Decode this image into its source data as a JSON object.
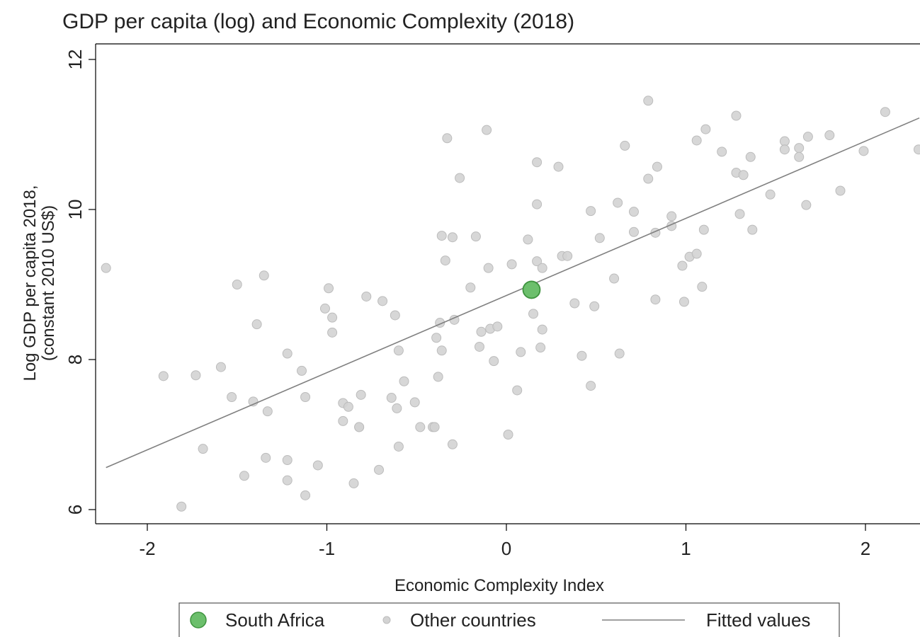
{
  "chart_data": {
    "type": "scatter",
    "title": "GDP per capita (log) and Economic Complexity (2018)",
    "xlabel": "Economic Complexity Index",
    "ylabel_lines": [
      "Log GDP per capita 2018,",
      "(constant 2010 US$)"
    ],
    "xlim": [
      -2.3,
      2.3
    ],
    "ylim": [
      5.9,
      12.2
    ],
    "xticks": [
      -2,
      -1,
      0,
      1,
      2
    ],
    "yticks": [
      6,
      8,
      10,
      12
    ],
    "grid": false,
    "legend_position": "bottom",
    "colors": {
      "highlight_fill": "#6cbf6c",
      "highlight_stroke": "#3f943f",
      "other_fill": "#d3d3d3",
      "other_stroke": "#bcbcbc",
      "fit": "#808080",
      "axis": "#000000"
    },
    "series": [
      {
        "name": "South Africa",
        "kind": "highlight",
        "points": [
          [
            0.14,
            8.93
          ]
        ]
      },
      {
        "name": "Other countries",
        "kind": "scatter",
        "points": [
          [
            -2.23,
            9.22
          ],
          [
            -1.91,
            7.78
          ],
          [
            -1.81,
            6.04
          ],
          [
            -1.73,
            7.79
          ],
          [
            -1.69,
            6.81
          ],
          [
            -1.59,
            7.9
          ],
          [
            -1.53,
            7.5
          ],
          [
            -1.5,
            9.0
          ],
          [
            -1.46,
            6.45
          ],
          [
            -1.41,
            7.44
          ],
          [
            -1.39,
            8.47
          ],
          [
            -1.35,
            9.12
          ],
          [
            -1.34,
            6.69
          ],
          [
            -1.33,
            7.31
          ],
          [
            -1.22,
            8.08
          ],
          [
            -1.22,
            6.66
          ],
          [
            -1.22,
            6.39
          ],
          [
            -1.14,
            7.85
          ],
          [
            -1.12,
            6.19
          ],
          [
            -1.12,
            7.5
          ],
          [
            -1.05,
            6.59
          ],
          [
            -1.01,
            8.68
          ],
          [
            -0.99,
            8.95
          ],
          [
            -0.97,
            8.36
          ],
          [
            -0.97,
            8.56
          ],
          [
            -0.91,
            7.18
          ],
          [
            -0.91,
            7.42
          ],
          [
            -0.88,
            7.37
          ],
          [
            -0.85,
            6.35
          ],
          [
            -0.82,
            7.1
          ],
          [
            -0.82,
            7.1
          ],
          [
            -0.81,
            7.53
          ],
          [
            -0.78,
            8.84
          ],
          [
            -0.71,
            6.53
          ],
          [
            -0.69,
            8.78
          ],
          [
            -0.64,
            7.49
          ],
          [
            -0.62,
            8.59
          ],
          [
            -0.61,
            7.35
          ],
          [
            -0.6,
            8.12
          ],
          [
            -0.6,
            6.84
          ],
          [
            -0.57,
            7.71
          ],
          [
            -0.51,
            7.43
          ],
          [
            -0.48,
            7.1
          ],
          [
            -0.41,
            7.1
          ],
          [
            -0.4,
            7.1
          ],
          [
            -0.39,
            8.29
          ],
          [
            -0.38,
            7.77
          ],
          [
            -0.37,
            8.49
          ],
          [
            -0.36,
            8.12
          ],
          [
            -0.36,
            9.65
          ],
          [
            -0.34,
            9.32
          ],
          [
            -0.33,
            10.95
          ],
          [
            -0.3,
            9.63
          ],
          [
            -0.3,
            6.87
          ],
          [
            -0.29,
            8.53
          ],
          [
            -0.26,
            10.42
          ],
          [
            -0.2,
            8.96
          ],
          [
            -0.17,
            9.64
          ],
          [
            -0.15,
            8.17
          ],
          [
            -0.14,
            8.37
          ],
          [
            -0.11,
            11.06
          ],
          [
            -0.1,
            9.22
          ],
          [
            -0.09,
            8.41
          ],
          [
            -0.07,
            7.98
          ],
          [
            -0.05,
            8.44
          ],
          [
            0.01,
            7.0
          ],
          [
            0.03,
            9.27
          ],
          [
            0.06,
            7.59
          ],
          [
            0.08,
            8.1
          ],
          [
            0.12,
            9.6
          ],
          [
            0.15,
            8.61
          ],
          [
            0.17,
            10.63
          ],
          [
            0.17,
            10.07
          ],
          [
            0.17,
            9.31
          ],
          [
            0.19,
            8.16
          ],
          [
            0.2,
            8.4
          ],
          [
            0.2,
            9.22
          ],
          [
            0.29,
            10.57
          ],
          [
            0.31,
            9.38
          ],
          [
            0.34,
            9.38
          ],
          [
            0.38,
            8.75
          ],
          [
            0.42,
            8.05
          ],
          [
            0.47,
            7.65
          ],
          [
            0.47,
            9.98
          ],
          [
            0.49,
            8.71
          ],
          [
            0.52,
            9.62
          ],
          [
            0.6,
            9.08
          ],
          [
            0.62,
            10.09
          ],
          [
            0.63,
            8.08
          ],
          [
            0.66,
            10.85
          ],
          [
            0.71,
            9.97
          ],
          [
            0.71,
            9.7
          ],
          [
            0.79,
            10.41
          ],
          [
            0.79,
            11.45
          ],
          [
            0.83,
            8.8
          ],
          [
            0.83,
            9.69
          ],
          [
            0.84,
            10.57
          ],
          [
            0.92,
            9.78
          ],
          [
            0.92,
            9.91
          ],
          [
            0.98,
            9.25
          ],
          [
            0.99,
            8.77
          ],
          [
            1.02,
            9.37
          ],
          [
            1.06,
            10.92
          ],
          [
            1.06,
            9.41
          ],
          [
            1.09,
            8.97
          ],
          [
            1.1,
            9.73
          ],
          [
            1.11,
            11.07
          ],
          [
            1.2,
            10.77
          ],
          [
            1.28,
            10.49
          ],
          [
            1.28,
            11.25
          ],
          [
            1.3,
            9.94
          ],
          [
            1.32,
            10.46
          ],
          [
            1.36,
            10.7
          ],
          [
            1.37,
            9.73
          ],
          [
            1.47,
            10.2
          ],
          [
            1.55,
            10.91
          ],
          [
            1.55,
            10.8
          ],
          [
            1.63,
            10.82
          ],
          [
            1.63,
            10.7
          ],
          [
            1.67,
            10.06
          ],
          [
            1.68,
            10.97
          ],
          [
            1.8,
            10.99
          ],
          [
            1.86,
            10.25
          ],
          [
            1.99,
            10.78
          ],
          [
            2.11,
            11.3
          ],
          [
            2.3,
            10.8
          ]
        ]
      },
      {
        "name": "Fitted values",
        "kind": "line",
        "points": [
          [
            -2.23,
            6.56
          ],
          [
            2.3,
            11.22
          ]
        ]
      }
    ]
  }
}
